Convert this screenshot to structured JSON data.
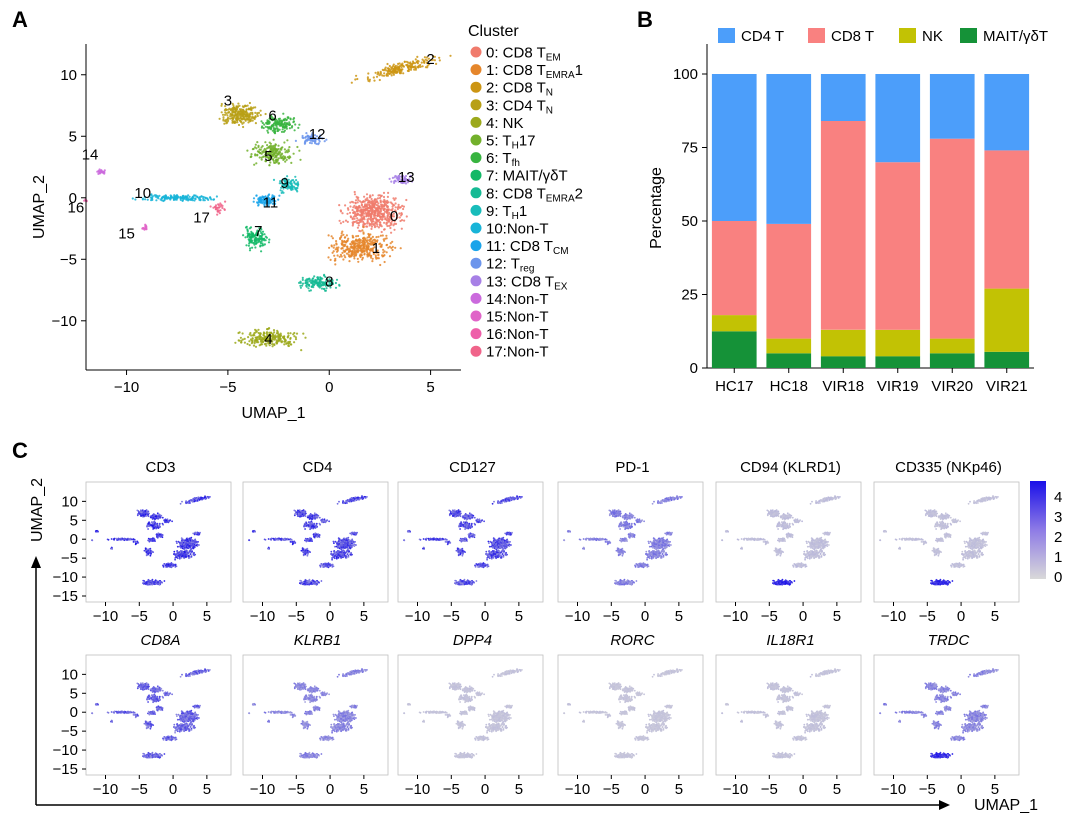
{
  "panels": {
    "a": "A",
    "b": "B",
    "c": "C"
  },
  "umap_axes": {
    "x_label": "UMAP_1",
    "y_label": "UMAP_2"
  },
  "chart_data": [
    {
      "type": "scatter",
      "panel": "A",
      "xlabel": "UMAP_1",
      "ylabel": "UMAP_2",
      "xlim": [
        -12,
        6.5
      ],
      "ylim": [
        -14,
        12.5
      ],
      "xticks": [
        "−10",
        "−5",
        "0",
        "5"
      ],
      "yticks": [
        "10",
        "5",
        "0",
        "−5",
        "−10"
      ],
      "legend_title": "Cluster",
      "legend": [
        {
          "id": "0",
          "sep": ": ",
          "text": "CD8 T",
          "sub": "EM",
          "tail": "",
          "color": "#F07B6C"
        },
        {
          "id": "1",
          "sep": ": ",
          "text": "CD8 T",
          "sub": "EMRA",
          "tail": "1",
          "color": "#E5862B"
        },
        {
          "id": "2",
          "sep": ": ",
          "text": "CD8 T",
          "sub": "N",
          "tail": "",
          "color": "#CC9513"
        },
        {
          "id": "3",
          "sep": ": ",
          "text": "CD4 T",
          "sub": "N",
          "tail": "",
          "color": "#B8A016"
        },
        {
          "id": "4",
          "sep": ": ",
          "text": "NK",
          "sub": "",
          "tail": "",
          "color": "#9CA91B"
        },
        {
          "id": "5",
          "sep": ": ",
          "text": "T",
          "sub": "H",
          "tail": "17",
          "color": "#72B02B"
        },
        {
          "id": "6",
          "sep": ": ",
          "text": "T",
          "sub": "fh",
          "tail": "",
          "color": "#38B440"
        },
        {
          "id": "7",
          "sep": ": ",
          "text": "MAIT/γδT",
          "sub": "",
          "tail": "",
          "color": "#12B866"
        },
        {
          "id": "8",
          "sep": ": ",
          "text": "CD8 T",
          "sub": "EMRA",
          "tail": "2",
          "color": "#16BA94"
        },
        {
          "id": "9",
          "sep": ": ",
          "text": "T",
          "sub": "H",
          "tail": "1",
          "color": "#18BCBA"
        },
        {
          "id": "10",
          "sep": ":",
          "text": "Non-T",
          "sub": "",
          "tail": "",
          "color": "#18B4D8"
        },
        {
          "id": "11",
          "sep": ": ",
          "text": "CD8 T",
          "sub": "CM",
          "tail": "",
          "color": "#1AA4EA"
        },
        {
          "id": "12",
          "sep": ": ",
          "text": "T",
          "sub": "reg",
          "tail": "",
          "color": "#6C95EC"
        },
        {
          "id": "13",
          "sep": ": ",
          "text": "CD8 T",
          "sub": "EX",
          "tail": "",
          "color": "#A780E6"
        },
        {
          "id": "14",
          "sep": ":",
          "text": "Non-T",
          "sub": "",
          "tail": "",
          "color": "#CB6ADD"
        },
        {
          "id": "15",
          "sep": ":",
          "text": "Non-T",
          "sub": "",
          "tail": "",
          "color": "#E064C8"
        },
        {
          "id": "16",
          "sep": ":",
          "text": "Non-T",
          "sub": "",
          "tail": "",
          "color": "#EE5FAA"
        },
        {
          "id": "17",
          "sep": ":",
          "text": "Non-T",
          "sub": "",
          "tail": "",
          "color": "#F0648A"
        }
      ],
      "cluster_labels": [
        {
          "id": "0",
          "x": 3.2,
          "y": -1.5
        },
        {
          "id": "1",
          "x": 2.3,
          "y": -4.1
        },
        {
          "id": "2",
          "x": 5.0,
          "y": 11.3
        },
        {
          "id": "3",
          "x": -5.0,
          "y": 7.9
        },
        {
          "id": "4",
          "x": -3.0,
          "y": -11.5
        },
        {
          "id": "5",
          "x": -3.0,
          "y": 3.4
        },
        {
          "id": "6",
          "x": -2.8,
          "y": 6.7
        },
        {
          "id": "7",
          "x": -3.5,
          "y": -2.7
        },
        {
          "id": "8",
          "x": 0.0,
          "y": -6.8
        },
        {
          "id": "9",
          "x": -2.2,
          "y": 1.2
        },
        {
          "id": "10",
          "x": -9.2,
          "y": 0.4
        },
        {
          "id": "11",
          "x": -2.9,
          "y": -0.4
        },
        {
          "id": "12",
          "x": -0.6,
          "y": 5.2
        },
        {
          "id": "13",
          "x": 3.8,
          "y": 1.7
        },
        {
          "id": "14",
          "x": -11.8,
          "y": 3.5
        },
        {
          "id": "15",
          "x": -10.0,
          "y": -2.9
        },
        {
          "id": "16",
          "x": -12.5,
          "y": -0.8
        },
        {
          "id": "17",
          "x": -6.3,
          "y": -1.6
        }
      ]
    },
    {
      "type": "bar",
      "panel": "B",
      "stacked": true,
      "ylabel": "Percentage",
      "xlabel": "",
      "ylim": [
        0,
        100
      ],
      "yticks": [
        "0",
        "25",
        "50",
        "75",
        "100"
      ],
      "legend_position": "top",
      "categories": [
        "HC17",
        "HC18",
        "VIR18",
        "VIR19",
        "VIR20",
        "VIR21"
      ],
      "series": [
        {
          "name": "MAIT/γδT",
          "color": "#159238",
          "values": [
            12.5,
            5,
            4,
            4,
            5,
            5.5
          ]
        },
        {
          "name": "NK",
          "color": "#C2C204",
          "values": [
            5.5,
            5,
            9,
            9,
            5,
            21.5
          ]
        },
        {
          "name": "CD8 T",
          "color": "#F98180",
          "values": [
            32,
            39,
            71,
            57,
            68,
            47
          ]
        },
        {
          "name": "CD4 T",
          "color": "#4C9EFA",
          "values": [
            50,
            51,
            16,
            30,
            22,
            26
          ]
        }
      ],
      "legend_order": [
        "CD4 T",
        "CD8 T",
        "NK",
        "MAIT/γδT"
      ]
    },
    {
      "type": "scatter",
      "panel": "C",
      "xticks": [
        "−10",
        "−5",
        "0",
        "5"
      ],
      "yticks": [
        "10",
        "5",
        "0",
        "−5",
        "−10",
        "−15"
      ],
      "colorbar": {
        "min": 0,
        "max": 4,
        "ticks": [
          "4",
          "3",
          "2",
          "1",
          "0"
        ],
        "low_color": "#D9D9D9",
        "high_color": "#1A10E8"
      },
      "features": [
        {
          "name": "CD3",
          "italic": false,
          "level": 1.0
        },
        {
          "name": "CD4",
          "italic": false,
          "level": 0.95
        },
        {
          "name": "CD127",
          "italic": false,
          "level": 0.9
        },
        {
          "name": "PD-1",
          "italic": false,
          "level": 0.5
        },
        {
          "name": "CD94 (KLRD1)",
          "italic": false,
          "level": 0.4
        },
        {
          "name": "CD335 (NKp46)",
          "italic": false,
          "level": 0.35
        },
        {
          "name": "CD8A",
          "italic": true,
          "level": 0.75
        },
        {
          "name": "KLRB1",
          "italic": true,
          "level": 0.45
        },
        {
          "name": "DPP4",
          "italic": true,
          "level": 0.3
        },
        {
          "name": "RORC",
          "italic": true,
          "level": 0.25
        },
        {
          "name": "IL18R1",
          "italic": true,
          "level": 0.3
        },
        {
          "name": "TRDC",
          "italic": true,
          "level": 0.45
        }
      ]
    }
  ]
}
